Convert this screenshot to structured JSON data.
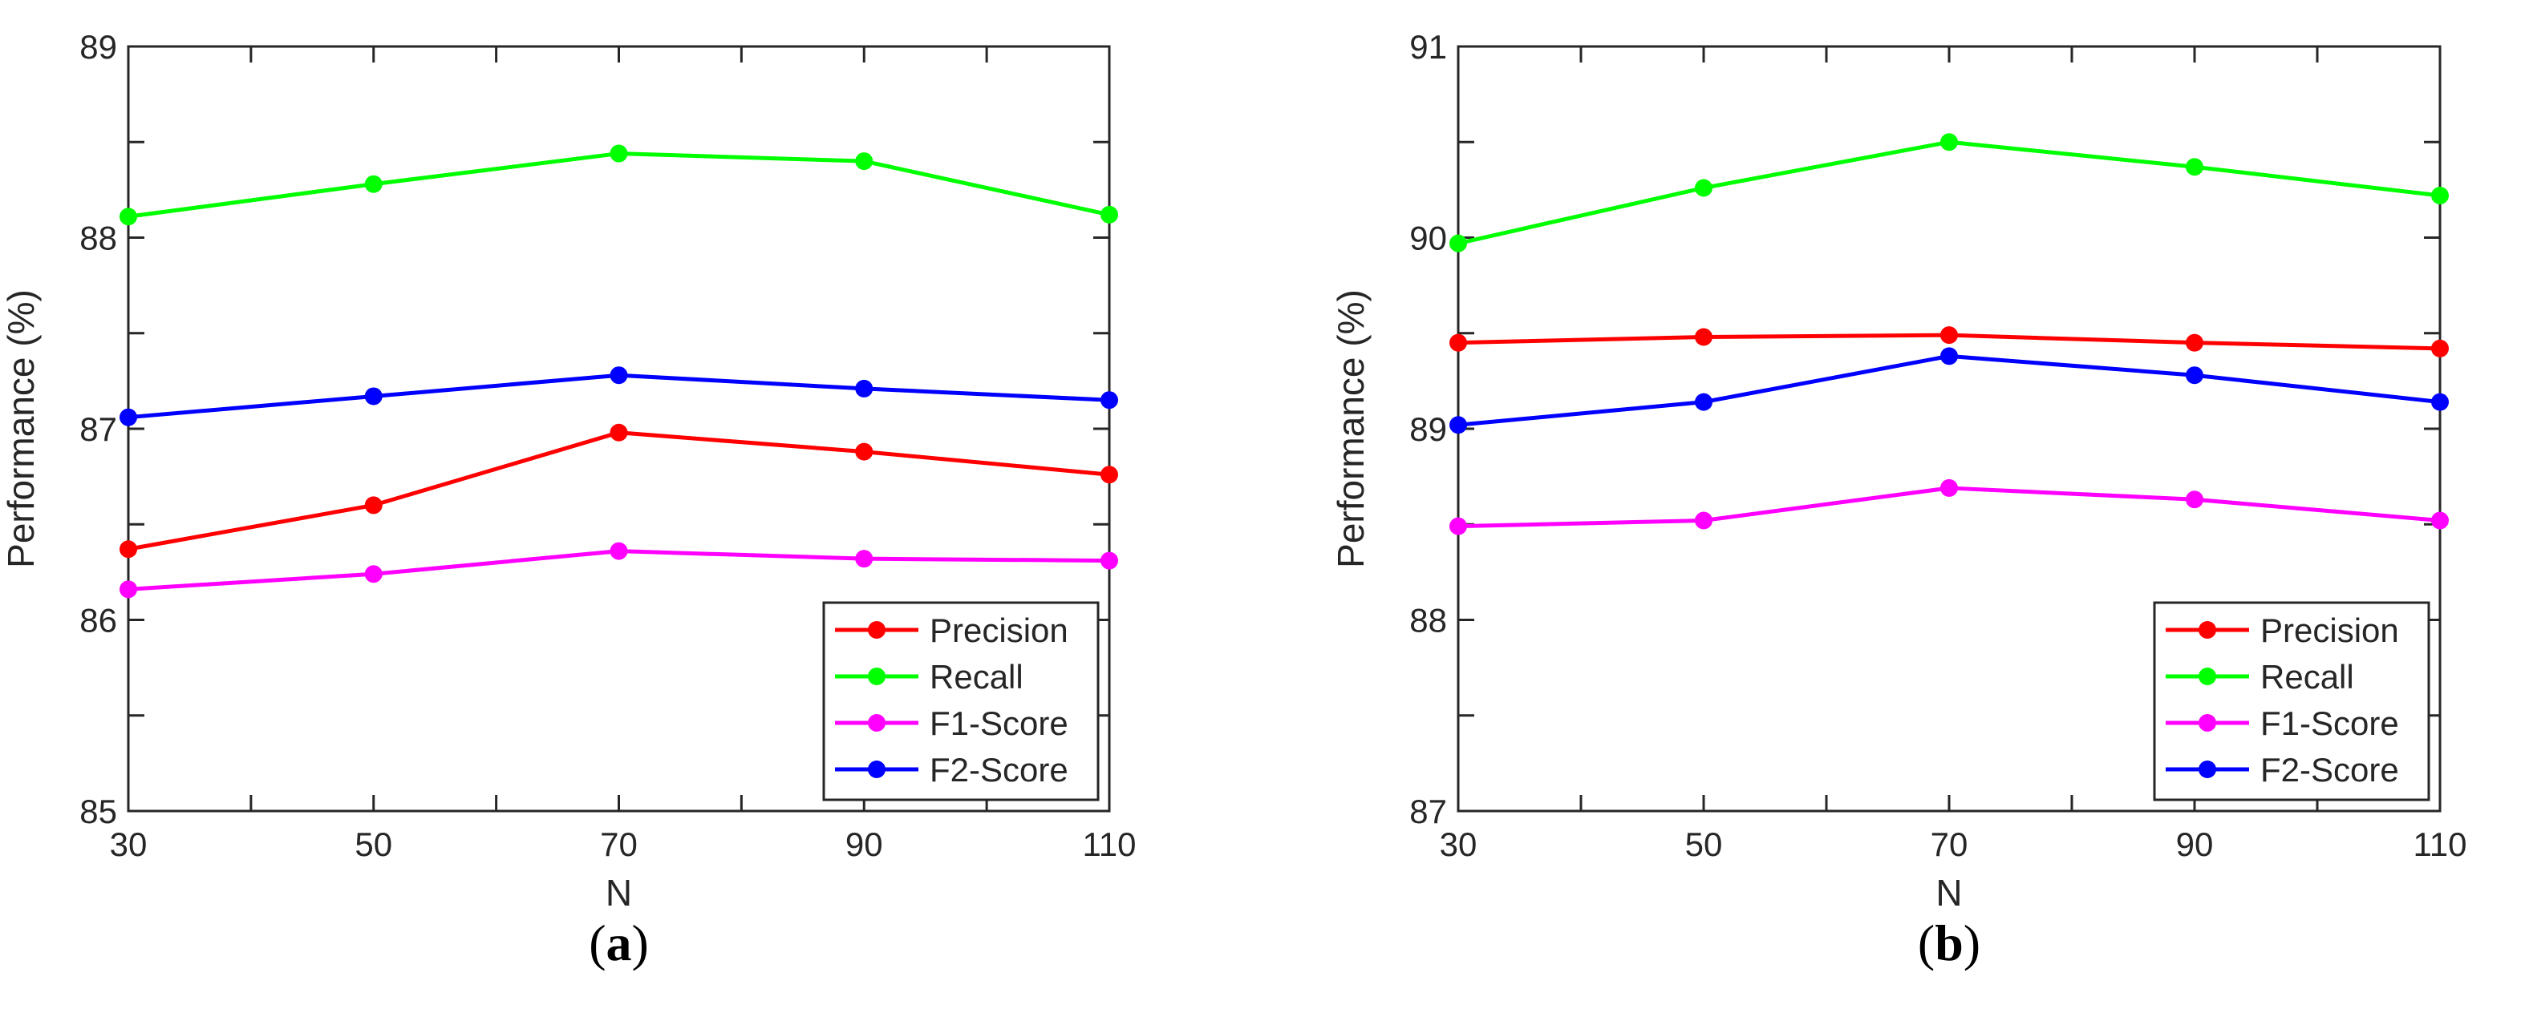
{
  "chart_data": [
    {
      "type": "line",
      "panel_label": "(a)",
      "panel_label_letter": "a",
      "xlabel": "N",
      "ylabel": "Performance (%)",
      "x": [
        30,
        50,
        70,
        90,
        110
      ],
      "xticks": [
        30,
        50,
        70,
        90,
        110
      ],
      "ylim": [
        85,
        89
      ],
      "yticks": [
        85,
        86,
        87,
        88,
        89
      ],
      "legend_position": "bottom-right",
      "series": [
        {
          "name": "Precision",
          "color": "#ff0000",
          "values": [
            86.37,
            86.6,
            86.98,
            86.88,
            86.76
          ]
        },
        {
          "name": "Recall",
          "color": "#00ff00",
          "values": [
            88.11,
            88.28,
            88.44,
            88.4,
            88.12
          ]
        },
        {
          "name": "F1-Score",
          "color": "#ff00ff",
          "values": [
            86.16,
            86.24,
            86.36,
            86.32,
            86.31
          ]
        },
        {
          "name": "F2-Score",
          "color": "#0000ff",
          "values": [
            87.06,
            87.17,
            87.28,
            87.21,
            87.15
          ]
        }
      ]
    },
    {
      "type": "line",
      "panel_label": "(b)",
      "panel_label_letter": "b",
      "xlabel": "N",
      "ylabel": "Performance (%)",
      "x": [
        30,
        50,
        70,
        90,
        110
      ],
      "xticks": [
        30,
        50,
        70,
        90,
        110
      ],
      "ylim": [
        87,
        91
      ],
      "yticks": [
        87,
        88,
        89,
        90,
        91
      ],
      "legend_position": "bottom-right",
      "series": [
        {
          "name": "Precision",
          "color": "#ff0000",
          "values": [
            89.45,
            89.48,
            89.49,
            89.45,
            89.42
          ]
        },
        {
          "name": "Recall",
          "color": "#00ff00",
          "values": [
            89.97,
            90.26,
            90.5,
            90.37,
            90.22
          ]
        },
        {
          "name": "F1-Score",
          "color": "#ff00ff",
          "values": [
            88.49,
            88.52,
            88.69,
            88.63,
            88.52
          ]
        },
        {
          "name": "F2-Score",
          "color": "#0000ff",
          "values": [
            89.02,
            89.14,
            89.38,
            89.28,
            89.14
          ]
        }
      ]
    }
  ]
}
